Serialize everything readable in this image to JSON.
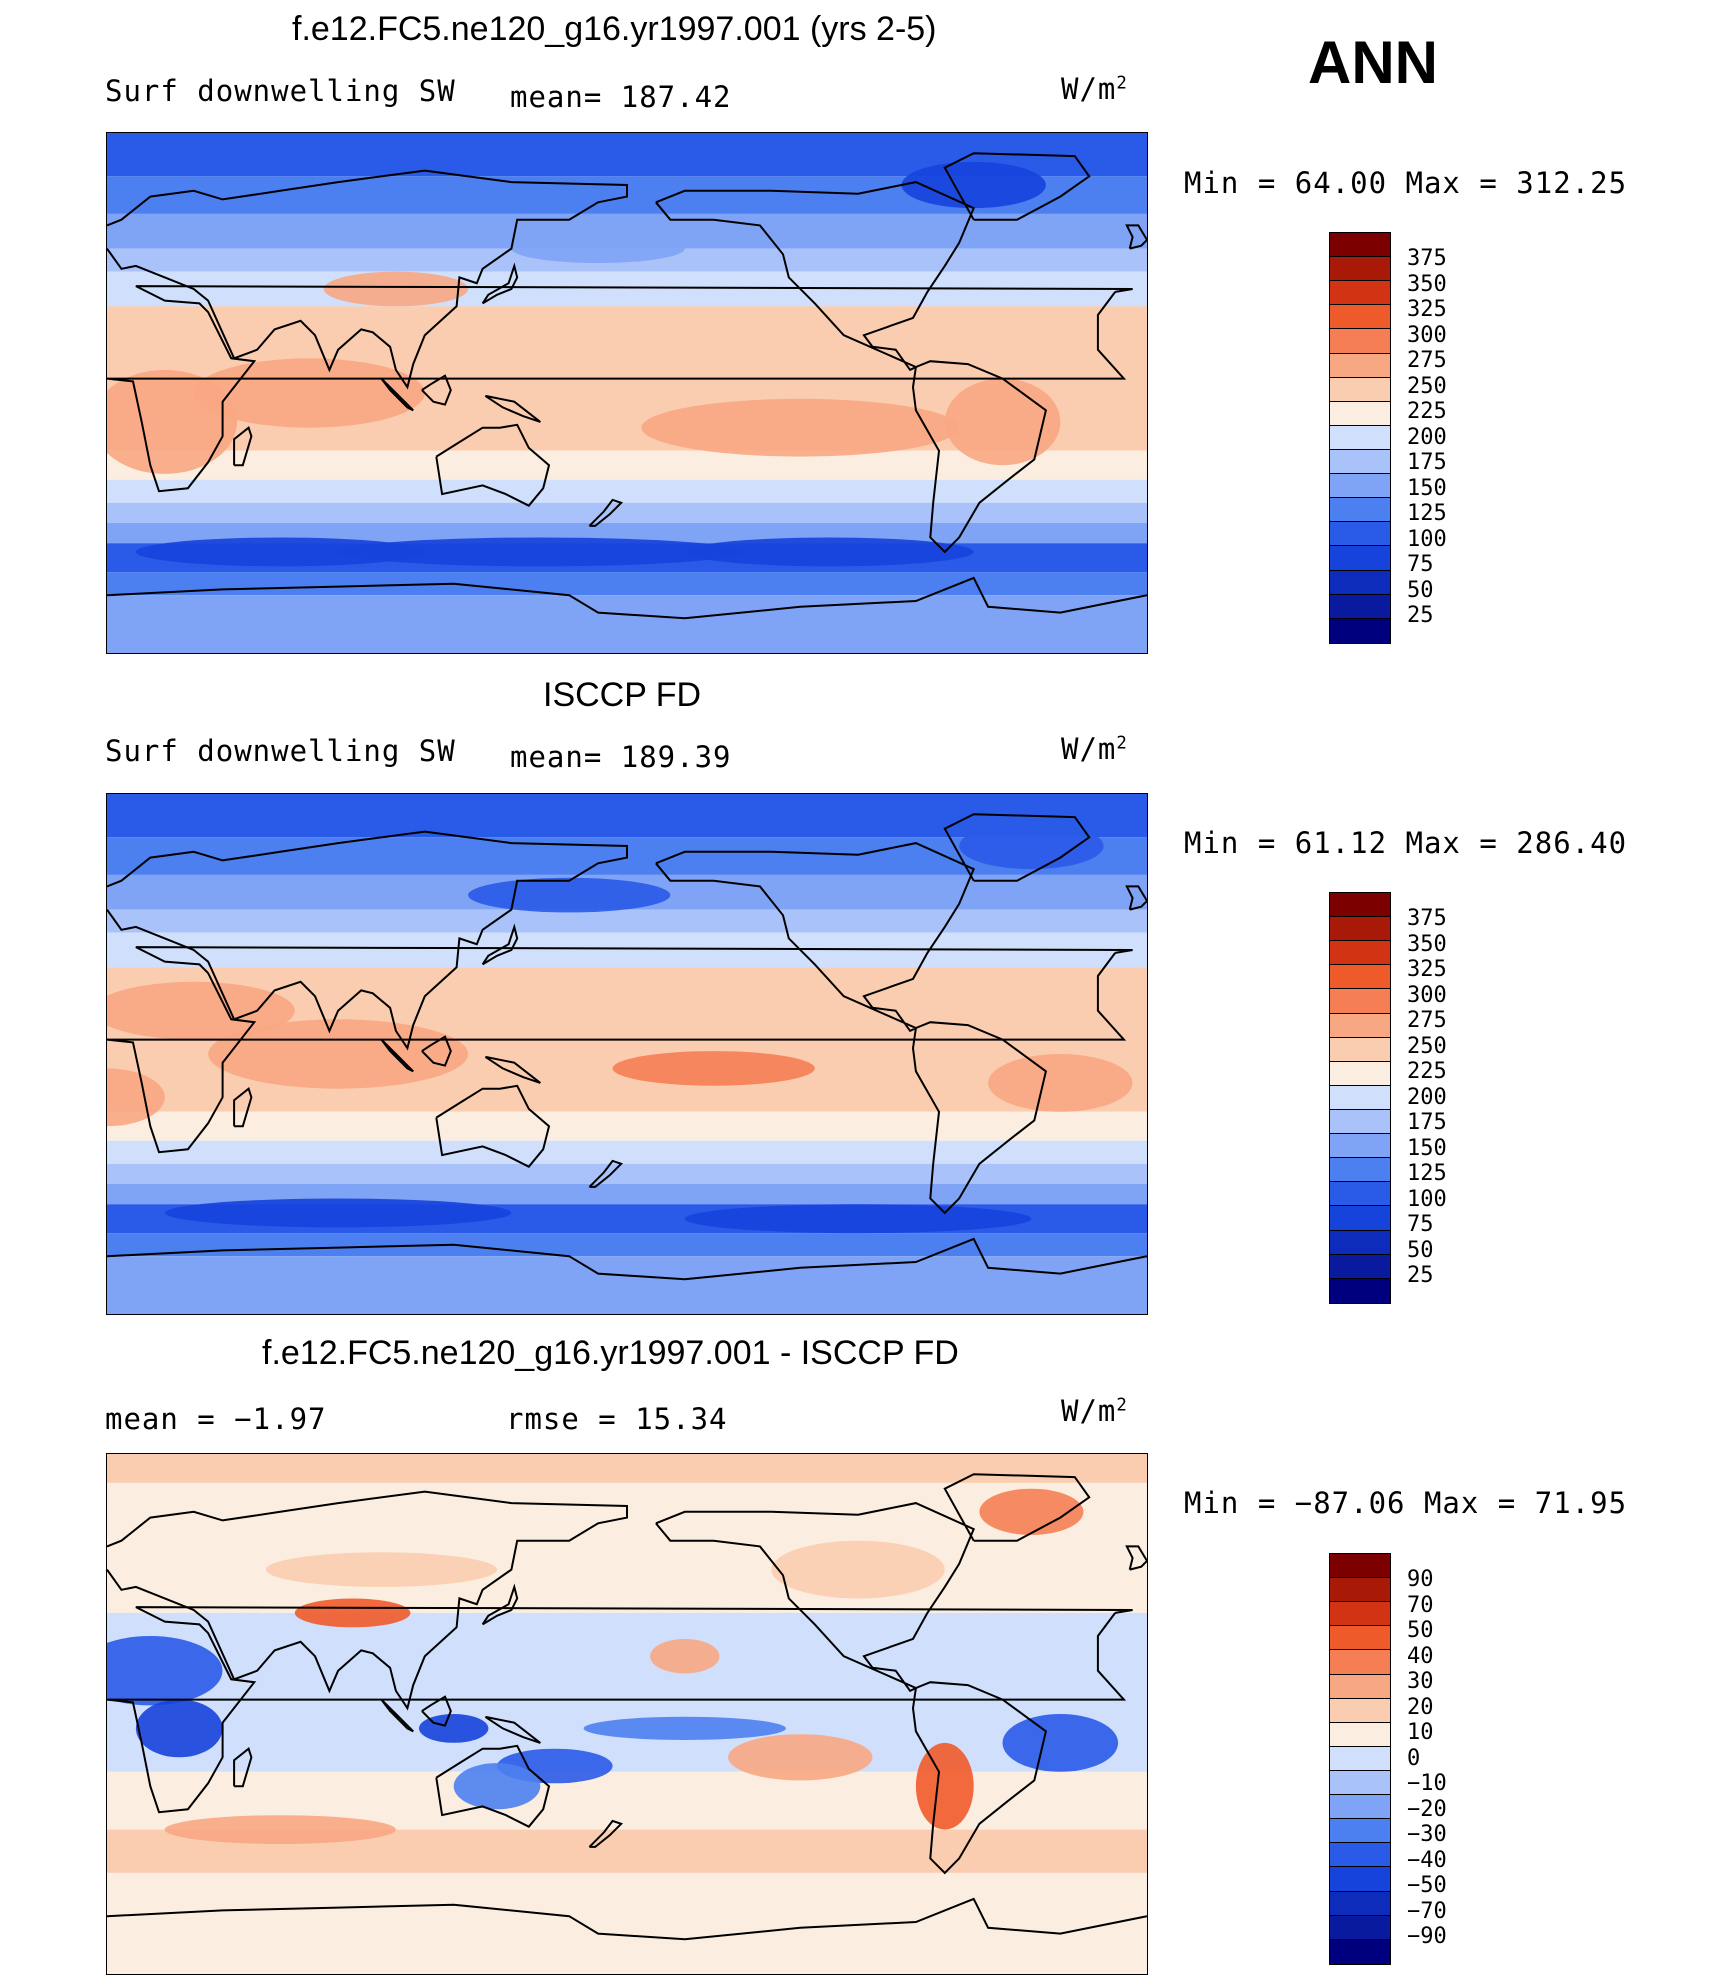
{
  "season": "ANN",
  "units_text": "W/m",
  "units_sup": "2",
  "colors": {
    "main_scale": [
      "#00007f",
      "#0a1a9e",
      "#0d2cbc",
      "#1643db",
      "#2a5ae8",
      "#4c7ff0",
      "#7fa3f5",
      "#a9c2f9",
      "#cfdffc",
      "#fbeee0",
      "#fbcdb0",
      "#f8a783",
      "#f57e55",
      "#ef5a2a",
      "#d23312",
      "#a81a07",
      "#7d0000"
    ],
    "diff_scale": [
      "#00007f",
      "#0a1a9e",
      "#0d2cbc",
      "#1643db",
      "#2a5ae8",
      "#4c7ff0",
      "#7fa3f5",
      "#a9c2f9",
      "#cfdffc",
      "#fbeee0",
      "#fbcdb0",
      "#f8a783",
      "#f57e55",
      "#ef5a2a",
      "#d23312",
      "#a81a07",
      "#7d0000"
    ]
  },
  "panels": [
    {
      "title": "f.e12.FC5.ne120_g16.yr1997.001 (yrs 2-5)",
      "left_label": "Surf  downwelling  SW",
      "center_label": "mean=  187.42",
      "minmax": "Min  =    64.00  Max  =  312.25",
      "colorbar_labels": [
        "375",
        "350",
        "325",
        "300",
        "275",
        "250",
        "225",
        "200",
        "175",
        "150",
        "125",
        "100",
        "75",
        "50",
        "25"
      ]
    },
    {
      "title": "ISCCP FD",
      "left_label": "Surf  downwelling  SW",
      "center_label": "mean=  189.39",
      "minmax": "Min  =    61.12  Max  =  286.40",
      "colorbar_labels": [
        "375",
        "350",
        "325",
        "300",
        "275",
        "250",
        "225",
        "200",
        "175",
        "150",
        "125",
        "100",
        "75",
        "50",
        "25"
      ]
    },
    {
      "title": "f.e12.FC5.ne120_g16.yr1997.001 - ISCCP FD",
      "left_label": "mean  =    −1.97",
      "center_label": "rmse  =    15.34",
      "minmax": "Min  = −87.06  Max  =    71.95",
      "colorbar_labels": [
        "90",
        "70",
        "50",
        "40",
        "30",
        "20",
        "10",
        "0",
        "−10",
        "−20",
        "−30",
        "−40",
        "−50",
        "−70",
        "−90"
      ]
    }
  ],
  "chart_data": [
    {
      "type": "heatmap",
      "title": "f.e12.FC5.ne120_g16.yr1997.001 (yrs 2-5)",
      "variable": "Surf  downwelling  SW",
      "units": "W/m2",
      "mean": 187.42,
      "min": 64.0,
      "max": 312.25,
      "contour_levels": [
        25,
        50,
        75,
        100,
        125,
        150,
        175,
        200,
        225,
        250,
        275,
        300,
        325,
        350,
        375
      ]
    },
    {
      "type": "heatmap",
      "title": "ISCCP FD",
      "variable": "Surf  downwelling  SW",
      "units": "W/m2",
      "mean": 189.39,
      "min": 61.12,
      "max": 286.4,
      "contour_levels": [
        25,
        50,
        75,
        100,
        125,
        150,
        175,
        200,
        225,
        250,
        275,
        300,
        325,
        350,
        375
      ]
    },
    {
      "type": "heatmap",
      "title": "f.e12.FC5.ne120_g16.yr1997.001 - ISCCP FD",
      "units": "W/m2",
      "mean": -1.97,
      "rmse": 15.34,
      "min": -87.06,
      "max": 71.95,
      "contour_levels": [
        -90,
        -70,
        -50,
        -40,
        -30,
        -20,
        -10,
        0,
        10,
        20,
        30,
        40,
        50,
        70,
        90
      ]
    }
  ]
}
